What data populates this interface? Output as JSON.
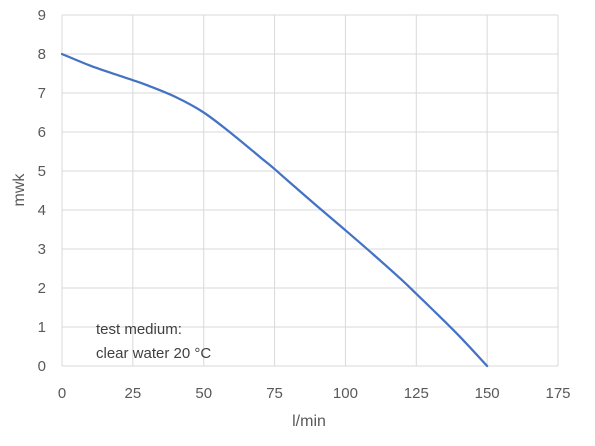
{
  "chart_data": {
    "type": "line",
    "title": "",
    "xlabel": "l/min",
    "ylabel": "mwk",
    "xlim": [
      0,
      175
    ],
    "ylim": [
      0,
      9
    ],
    "x_ticks": [
      "0",
      "25",
      "50",
      "75",
      "100",
      "125",
      "150",
      "175"
    ],
    "y_ticks": [
      "0",
      "1",
      "2",
      "3",
      "4",
      "5",
      "6",
      "7",
      "8",
      "9"
    ],
    "grid": true,
    "legend": "none",
    "series": [
      {
        "color": "#4472c4",
        "x": [
          0,
          10,
          20,
          25,
          30,
          40,
          50,
          60,
          70,
          75,
          80,
          90,
          100,
          110,
          120,
          125,
          130,
          140,
          150
        ],
        "y": [
          8.0,
          7.7,
          7.45,
          7.33,
          7.2,
          6.9,
          6.5,
          5.95,
          5.35,
          5.05,
          4.73,
          4.1,
          3.48,
          2.85,
          2.2,
          1.85,
          1.5,
          0.78,
          0.0
        ]
      }
    ],
    "annotations": [
      "test medium:",
      "clear water 20 °C"
    ]
  },
  "colors": {
    "grid": "#d9d9d9",
    "tick_text": "#595959",
    "annotation_text": "#404040"
  }
}
